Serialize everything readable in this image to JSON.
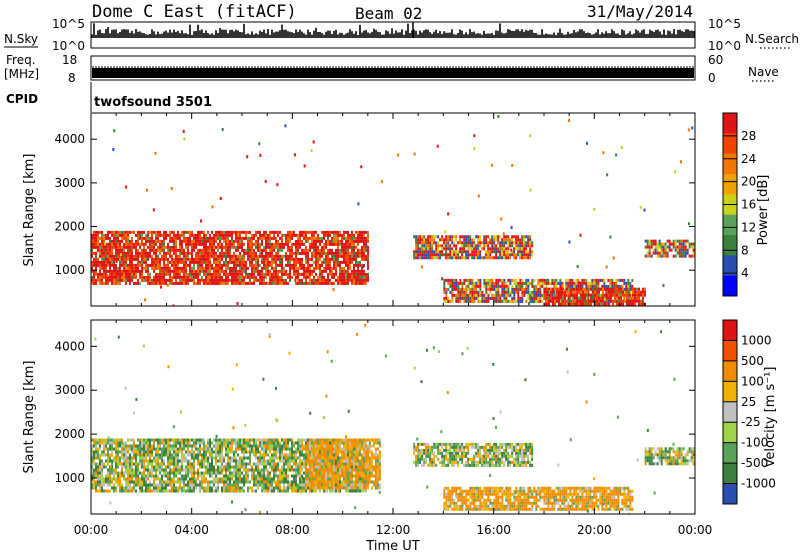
{
  "header": {
    "station": "Dome C East (fitACF)",
    "beam": "Beam 02",
    "date": "31/May/2014"
  },
  "noise_panel": {
    "left_label": "N.Sky",
    "right_label": "N.Search",
    "tick_top": "10^5",
    "tick_bottom": "10^0"
  },
  "freq_panel": {
    "left_label_1": "Freq.",
    "left_label_2": "[MHz]",
    "right_label": "Nave",
    "tick_left_top": "18",
    "tick_left_bottom": "8",
    "tick_right_top": "60",
    "tick_right_bottom": "0"
  },
  "cpid_panel": {
    "label": "CPID",
    "value": "twofsound 3501"
  },
  "colors": {
    "power": [
      "#0000ff",
      "#2a4fb0",
      "#3d7f3d",
      "#5aa25a",
      "#c8d219",
      "#f0a000",
      "#f07800",
      "#f04600",
      "#e11414"
    ],
    "velocity": [
      "#2a4fb0",
      "#3d7f3d",
      "#5aa25a",
      "#9fd14a",
      "#c0c0c0",
      "#f0b000",
      "#f08c00",
      "#f05000",
      "#e11414"
    ]
  },
  "chart_data": [
    {
      "type": "heatmap",
      "name": "power",
      "ylabel": "Slant Range [km]",
      "xlabel": "Time UT",
      "xticks": [
        "00:00",
        "04:00",
        "08:00",
        "12:00",
        "16:00",
        "20:00",
        "00:00"
      ],
      "xlim_hours": [
        0,
        24
      ],
      "yticks": [
        1000,
        2000,
        3000,
        4000
      ],
      "ylim": [
        180,
        4600
      ],
      "colorbar_label": "Power [dB]",
      "colorbar_ticks": [
        "28",
        "24",
        "20",
        "16",
        "12",
        "8",
        "4"
      ],
      "scale_range": [
        0,
        32
      ],
      "echo_regions": [
        {
          "t": [
            0.0,
            11.0
          ],
          "r": [
            700,
            1900
          ],
          "level": "high"
        },
        {
          "t": [
            12.8,
            17.5
          ],
          "r": [
            1300,
            1800
          ],
          "level": "mid"
        },
        {
          "t": [
            14.0,
            21.5
          ],
          "r": [
            300,
            800
          ],
          "level": "mid"
        },
        {
          "t": [
            18.0,
            22.0
          ],
          "r": [
            180,
            600
          ],
          "level": "high"
        },
        {
          "t": [
            22.0,
            24.0
          ],
          "r": [
            1300,
            1700
          ],
          "level": "mid"
        }
      ]
    },
    {
      "type": "heatmap",
      "name": "velocity",
      "ylabel": "Slant Range [km]",
      "xlabel": "Time UT",
      "xticks": [
        "00:00",
        "04:00",
        "08:00",
        "12:00",
        "16:00",
        "20:00",
        "00:00"
      ],
      "xlim_hours": [
        0,
        24
      ],
      "yticks": [
        1000,
        2000,
        3000,
        4000
      ],
      "ylim": [
        180,
        4600
      ],
      "colorbar_label": "Velocity [m s⁻¹]",
      "colorbar_ticks": [
        "1000",
        "500",
        "100",
        "25",
        "-25",
        "-100",
        "-500",
        "-1000"
      ],
      "scale_range": [
        -1000,
        1000
      ],
      "echo_regions": [
        {
          "t": [
            0.0,
            11.0
          ],
          "r": [
            700,
            1900
          ],
          "level": "mixed"
        },
        {
          "t": [
            8.5,
            11.5
          ],
          "r": [
            800,
            1900
          ],
          "level": "away"
        },
        {
          "t": [
            12.8,
            17.5
          ],
          "r": [
            1300,
            1800
          ],
          "level": "mixed"
        },
        {
          "t": [
            14.0,
            21.5
          ],
          "r": [
            300,
            800
          ],
          "level": "away"
        },
        {
          "t": [
            22.0,
            24.0
          ],
          "r": [
            1300,
            1700
          ],
          "level": "mixed"
        }
      ]
    }
  ]
}
